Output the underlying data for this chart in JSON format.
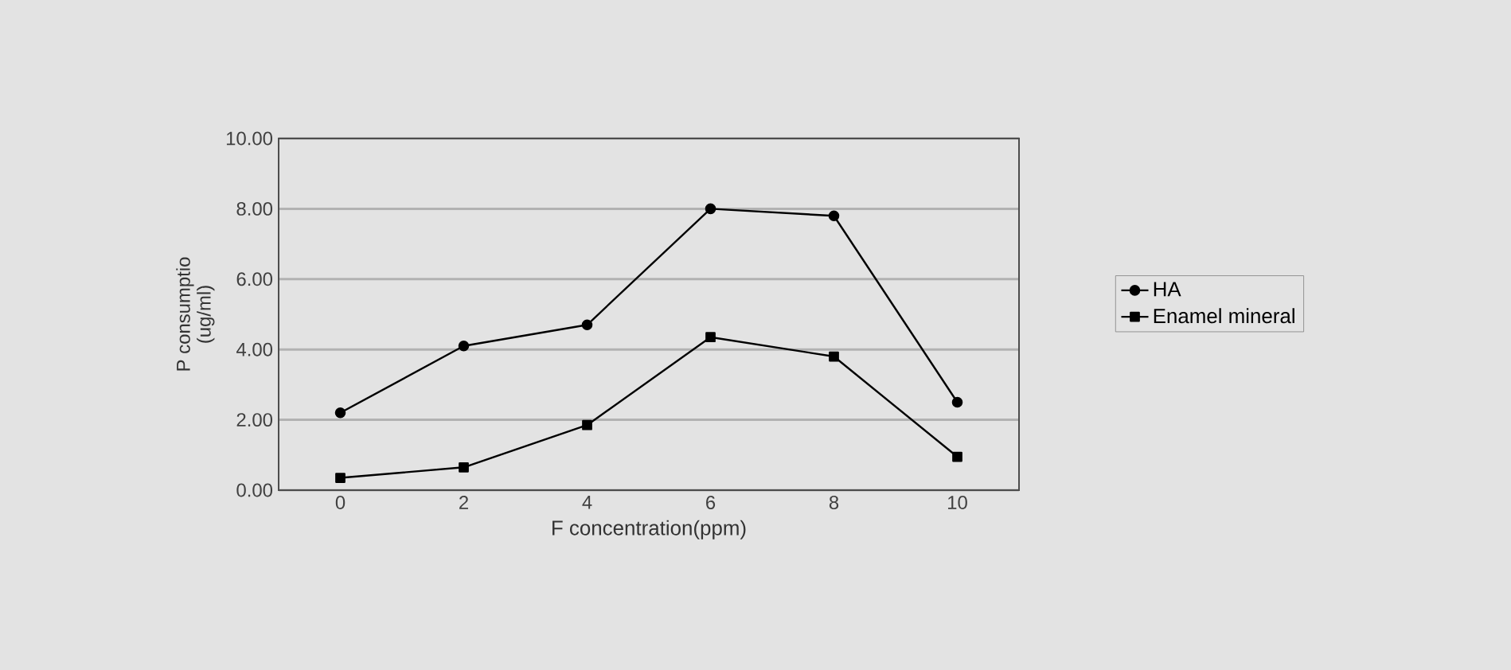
{
  "chart_data": {
    "type": "line",
    "xlabel": "F concentration(ppm)",
    "ylabel": "P consumptio\n(ug/ml)",
    "categories": [
      "0",
      "2",
      "4",
      "6",
      "8",
      "10"
    ],
    "series": [
      {
        "name": "HA",
        "color": "#000000",
        "marker": "circle",
        "values": [
          2.2,
          4.1,
          4.7,
          8.0,
          7.8,
          2.5
        ]
      },
      {
        "name": "Enamel mineral",
        "color": "#000000",
        "marker": "square",
        "values": [
          0.35,
          0.65,
          1.85,
          4.35,
          3.8,
          0.95
        ]
      }
    ],
    "ylim": [
      0,
      10
    ],
    "yticks": [
      {
        "value": 0,
        "label": "0.00"
      },
      {
        "value": 2,
        "label": "2.00"
      },
      {
        "value": 4,
        "label": "4.00"
      },
      {
        "value": 6,
        "label": "6.00"
      },
      {
        "value": 8,
        "label": "8.00"
      },
      {
        "value": 10,
        "label": "10.00"
      }
    ],
    "grid": "y",
    "legend": "right",
    "line_style": "solid"
  }
}
